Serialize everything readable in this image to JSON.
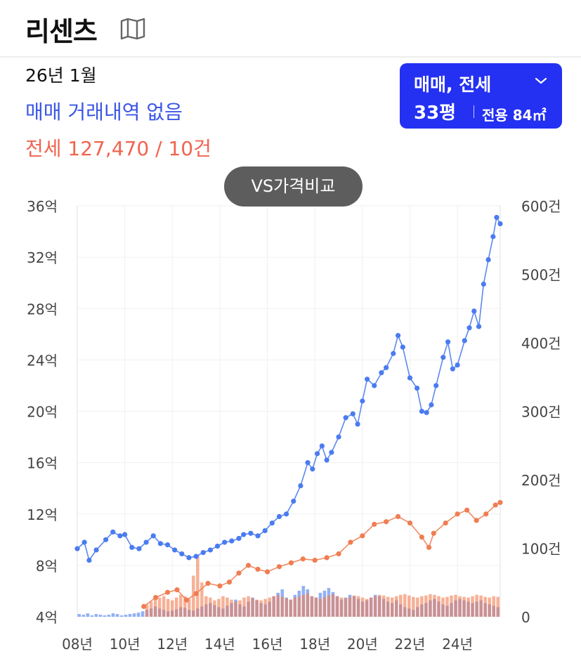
{
  "header": {
    "title": "리센츠"
  },
  "summary": {
    "date": "26년 1월",
    "sale_text": "매매 거래내역 없음",
    "jeonse_text": "전세 127,470 / 10건"
  },
  "dropdown": {
    "type_label": "매매, 전세",
    "size_label": "33평",
    "area_label": "전용 84㎡"
  },
  "compare_button": {
    "label": "VS가격비교"
  },
  "colors": {
    "sale": "#4a7bf0",
    "jeonse": "#f07d52",
    "accent": "#2430f2",
    "sale_text": "#3a56e6",
    "jeonse_text": "#f0644f"
  },
  "chart_data": {
    "type": "line",
    "x_axis": {
      "min": 2008,
      "max": 2025.8,
      "tick_values": [
        2008,
        2010,
        2012,
        2014,
        2016,
        2018,
        2020,
        2022,
        2024
      ],
      "tick_labels": [
        "08년",
        "10년",
        "12년",
        "14년",
        "16년",
        "18년",
        "20년",
        "22년",
        "24년"
      ]
    },
    "y_axis_left": {
      "min": 4,
      "max": 36,
      "tick_values": [
        4,
        8,
        12,
        16,
        20,
        24,
        28,
        32,
        36
      ],
      "tick_labels": [
        "4억",
        "8억",
        "12억",
        "16억",
        "20억",
        "24억",
        "28억",
        "32억",
        "36억"
      ]
    },
    "y_axis_right": {
      "min": 0,
      "max": 600,
      "tick_values": [
        0,
        100,
        200,
        300,
        400,
        500,
        600
      ],
      "tick_labels": [
        "0",
        "100건",
        "200건",
        "300건",
        "400건",
        "500건",
        "600건"
      ]
    },
    "grid": true,
    "series": [
      {
        "key": "sale",
        "axis": "left",
        "points": [
          [
            2008.0,
            9.3
          ],
          [
            2008.3,
            9.8
          ],
          [
            2008.5,
            8.4
          ],
          [
            2008.8,
            9.2
          ],
          [
            2009.2,
            10.0
          ],
          [
            2009.5,
            10.6
          ],
          [
            2009.8,
            10.3
          ],
          [
            2010.0,
            10.4
          ],
          [
            2010.3,
            9.4
          ],
          [
            2010.6,
            9.3
          ],
          [
            2010.9,
            9.8
          ],
          [
            2011.2,
            10.3
          ],
          [
            2011.5,
            9.7
          ],
          [
            2011.8,
            9.6
          ],
          [
            2012.1,
            9.2
          ],
          [
            2012.4,
            8.9
          ],
          [
            2012.7,
            8.6
          ],
          [
            2013.0,
            8.7
          ],
          [
            2013.3,
            9.0
          ],
          [
            2013.6,
            9.2
          ],
          [
            2013.9,
            9.5
          ],
          [
            2014.2,
            9.8
          ],
          [
            2014.5,
            9.9
          ],
          [
            2014.8,
            10.1
          ],
          [
            2015.0,
            10.4
          ],
          [
            2015.3,
            10.5
          ],
          [
            2015.6,
            10.3
          ],
          [
            2015.9,
            10.7
          ],
          [
            2016.2,
            11.3
          ],
          [
            2016.5,
            11.8
          ],
          [
            2016.8,
            12.0
          ],
          [
            2017.1,
            13.0
          ],
          [
            2017.4,
            14.2
          ],
          [
            2017.7,
            16.0
          ],
          [
            2017.9,
            15.5
          ],
          [
            2018.1,
            16.7
          ],
          [
            2018.3,
            17.3
          ],
          [
            2018.5,
            16.2
          ],
          [
            2018.7,
            16.8
          ],
          [
            2019.0,
            18.0
          ],
          [
            2019.3,
            19.5
          ],
          [
            2019.6,
            19.8
          ],
          [
            2019.8,
            19.0
          ],
          [
            2020.0,
            20.8
          ],
          [
            2020.2,
            22.5
          ],
          [
            2020.5,
            22.0
          ],
          [
            2020.8,
            23.0
          ],
          [
            2021.0,
            23.4
          ],
          [
            2021.3,
            24.5
          ],
          [
            2021.5,
            25.9
          ],
          [
            2021.7,
            25.0
          ],
          [
            2022.0,
            22.6
          ],
          [
            2022.3,
            21.8
          ],
          [
            2022.5,
            20.0
          ],
          [
            2022.7,
            19.9
          ],
          [
            2022.9,
            20.5
          ],
          [
            2023.1,
            22.0
          ],
          [
            2023.4,
            24.2
          ],
          [
            2023.6,
            25.4
          ],
          [
            2023.8,
            23.3
          ],
          [
            2024.0,
            23.6
          ],
          [
            2024.3,
            25.5
          ],
          [
            2024.5,
            26.5
          ],
          [
            2024.7,
            27.8
          ],
          [
            2024.9,
            26.6
          ],
          [
            2025.1,
            29.9
          ],
          [
            2025.3,
            31.8
          ],
          [
            2025.5,
            33.6
          ],
          [
            2025.65,
            35.1
          ],
          [
            2025.8,
            34.6
          ]
        ]
      },
      {
        "key": "jeonse",
        "axis": "left",
        "points": [
          [
            2010.8,
            4.8
          ],
          [
            2011.3,
            5.5
          ],
          [
            2011.8,
            5.9
          ],
          [
            2012.2,
            6.1
          ],
          [
            2012.6,
            5.3
          ],
          [
            2013.0,
            5.8
          ],
          [
            2013.5,
            6.6
          ],
          [
            2014.0,
            6.4
          ],
          [
            2014.4,
            6.7
          ],
          [
            2014.8,
            7.4
          ],
          [
            2015.2,
            8.0
          ],
          [
            2015.6,
            7.7
          ],
          [
            2016.0,
            7.5
          ],
          [
            2016.5,
            7.9
          ],
          [
            2017.0,
            8.2
          ],
          [
            2017.5,
            8.5
          ],
          [
            2018.0,
            8.4
          ],
          [
            2018.5,
            8.6
          ],
          [
            2019.0,
            8.9
          ],
          [
            2019.5,
            9.8
          ],
          [
            2020.0,
            10.3
          ],
          [
            2020.5,
            11.2
          ],
          [
            2021.0,
            11.4
          ],
          [
            2021.5,
            11.8
          ],
          [
            2022.0,
            11.3
          ],
          [
            2022.5,
            10.2
          ],
          [
            2022.8,
            9.4
          ],
          [
            2023.0,
            10.5
          ],
          [
            2023.5,
            11.3
          ],
          [
            2024.0,
            12.0
          ],
          [
            2024.4,
            12.3
          ],
          [
            2024.8,
            11.5
          ],
          [
            2025.2,
            12.0
          ],
          [
            2025.6,
            12.7
          ],
          [
            2025.8,
            12.9
          ]
        ]
      }
    ],
    "volume_series": [
      {
        "key": "sale_volume",
        "axis": "right",
        "values": [
          4,
          3,
          5,
          2,
          4,
          3,
          2,
          3,
          5,
          4,
          2,
          3,
          4,
          5,
          6,
          8,
          10,
          12,
          15,
          12,
          10,
          8,
          9,
          11,
          14,
          13,
          10,
          9,
          12,
          15,
          18,
          20,
          17,
          14,
          12,
          16,
          20,
          25,
          18,
          15,
          22,
          28,
          24,
          20,
          18,
          22,
          30,
          35,
          40,
          28,
          25,
          32,
          38,
          45,
          40,
          30,
          28,
          35,
          38,
          42,
          36,
          30,
          25,
          28,
          32,
          30,
          26,
          22,
          24,
          28,
          32,
          30,
          26,
          22,
          20,
          24,
          18,
          14,
          12,
          10,
          14,
          18,
          20,
          24,
          26,
          22,
          18,
          16,
          20,
          24,
          26,
          24,
          22,
          20,
          22,
          24,
          20,
          18,
          16,
          14
        ]
      },
      {
        "key": "jeonse_volume",
        "axis": "right",
        "values": [
          0,
          0,
          0,
          0,
          0,
          0,
          0,
          0,
          0,
          0,
          0,
          0,
          0,
          0,
          0,
          0,
          18,
          22,
          25,
          28,
          30,
          26,
          24,
          28,
          32,
          30,
          26,
          60,
          90,
          50,
          30,
          28,
          24,
          26,
          30,
          28,
          25,
          22,
          24,
          28,
          30,
          27,
          25,
          24,
          26,
          28,
          30,
          32,
          29,
          27,
          25,
          28,
          30,
          32,
          34,
          30,
          28,
          26,
          29,
          31,
          33,
          30,
          28,
          27,
          29,
          31,
          30,
          28,
          26,
          28,
          30,
          32,
          31,
          29,
          28,
          30,
          32,
          33,
          31,
          29,
          28,
          30,
          31,
          33,
          32,
          30,
          28,
          29,
          31,
          32,
          30,
          29,
          28,
          30,
          32,
          31,
          29,
          28,
          30,
          29
        ]
      }
    ]
  }
}
